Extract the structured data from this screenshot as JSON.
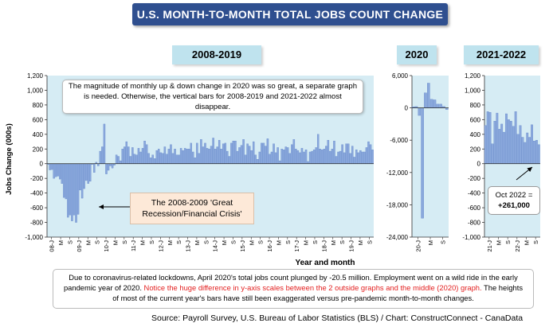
{
  "title": "U.S. MONTH-TO-MONTH TOTAL JOBS COUNT CHANGE",
  "period_labels": [
    "2008-2019",
    "2020",
    "2021-2022"
  ],
  "annotation": "The magnitude of monthly up & down change in 2020 was so great, a separate graph is needed. Otherwise, the vertical bars for 2008-2019 and 2021-2022 almost disappear.",
  "recession_label": "The 2008-2009 'Great Recession/Financial Crisis'",
  "oct_label_line1": "Oct 2022 =",
  "oct_label_line2": "+261,000",
  "note_part1": "Due to coronavirus-related lockdowns, April 2020's total jobs count plunged by -20.5 million. Employment went on a wild ride in the early pandemic year of 2020.",
  "note_red": "Notice the huge difference in y-axis scales between the 2 outside graphs and the middle (2020) graph.",
  "note_part2": "The heights of most of the current year's bars have still been exaggerated versus pre-pandemic month-to-month changes.",
  "source": "Source: Payroll Survey, U.S. Bureau of Labor Statistics (BLS) / Chart: ConstructConnect - CanaData",
  "colors": {
    "title_bg": "#2f4f8f",
    "plot_bg": "#d6ecf4",
    "bar": "#8aa8dc",
    "bar_edge": "#5b7fc6",
    "label_bg": "#bfe3ee"
  },
  "chart_data": [
    {
      "type": "bar",
      "title": "2008-2019",
      "ylabel": "Jobs Change (000s)",
      "xlabel": "Year and month",
      "ylim": [
        -1000,
        1200
      ],
      "yticks": [
        "1,200",
        "1,000",
        "800",
        "600",
        "400",
        "200",
        "0",
        "-200",
        "-400",
        "-600",
        "-800",
        "-1,000"
      ],
      "xticklabels": [
        "08-J",
        "M",
        "S",
        "09-J",
        "M",
        "S",
        "10-J",
        "M",
        "S",
        "11-J",
        "M",
        "S",
        "12-J",
        "M",
        "S",
        "13-J",
        "M",
        "S",
        "14-J",
        "M",
        "S",
        "15-J",
        "M",
        "S",
        "16-J",
        "M",
        "S",
        "17-J",
        "M",
        "S",
        "18-J",
        "M",
        "S",
        "19-J",
        "M",
        "S"
      ],
      "values": [
        -10,
        -85,
        -80,
        -200,
        -180,
        -170,
        -210,
        -270,
        -460,
        -480,
        -730,
        -700,
        -780,
        -700,
        -800,
        -690,
        -360,
        -470,
        -340,
        -230,
        -270,
        -240,
        -10,
        -120,
        20,
        -30,
        170,
        230,
        540,
        -140,
        -90,
        -30,
        -60,
        -20,
        120,
        100,
        40,
        200,
        230,
        300,
        230,
        100,
        220,
        130,
        120,
        210,
        160,
        210,
        310,
        260,
        140,
        80,
        120,
        70,
        180,
        200,
        150,
        140,
        230,
        130,
        200,
        260,
        140,
        200,
        120,
        120,
        210,
        180,
        210,
        200,
        200,
        280,
        160,
        80,
        280,
        140,
        330,
        230,
        280,
        210,
        200,
        240,
        350,
        200,
        230,
        320,
        200,
        270,
        280,
        170,
        100,
        280,
        310,
        310,
        170,
        220,
        250,
        330,
        120,
        270,
        240,
        180,
        300,
        120,
        60,
        160,
        280,
        280,
        240,
        340,
        130,
        160,
        270,
        150,
        220,
        40,
        200,
        190,
        230,
        220,
        140,
        260,
        330,
        200,
        180,
        150,
        210,
        160,
        190,
        30,
        160,
        170,
        190,
        220,
        400,
        200,
        190,
        200,
        240,
        320,
        170,
        200,
        310,
        100,
        160,
        170,
        260,
        150,
        270,
        270,
        140,
        240,
        90,
        190,
        150,
        180,
        160,
        160,
        220,
        300,
        260,
        190
      ],
      "points_per_tick_month": 4
    },
    {
      "type": "bar",
      "title": "2020",
      "ylim": [
        -24000,
        6000
      ],
      "yticks": [
        "6,000",
        "0",
        "-6,000",
        "-12,000",
        "-18,000",
        "-24,000"
      ],
      "xticklabels": [
        "20-J",
        "M",
        "S"
      ],
      "values": [
        210,
        250,
        -1400,
        -20500,
        2800,
        4600,
        1600,
        1500,
        700,
        700,
        260,
        -300
      ]
    },
    {
      "type": "bar",
      "title": "2021-2022",
      "ylim": [
        -1000,
        1200
      ],
      "yticks": [
        "1,200",
        "1,000",
        "800",
        "600",
        "400",
        "200",
        "0",
        "-200",
        "-400",
        "-600",
        "-800",
        "-1,000"
      ],
      "xticklabels": [
        "21-J",
        "M",
        "S",
        "22-J",
        "M",
        "S"
      ],
      "values": [
        520,
        710,
        700,
        270,
        580,
        690,
        470,
        540,
        430,
        680,
        600,
        580,
        510,
        710,
        400,
        520,
        360,
        290,
        420,
        360,
        530,
        310,
        320,
        260
      ]
    }
  ]
}
